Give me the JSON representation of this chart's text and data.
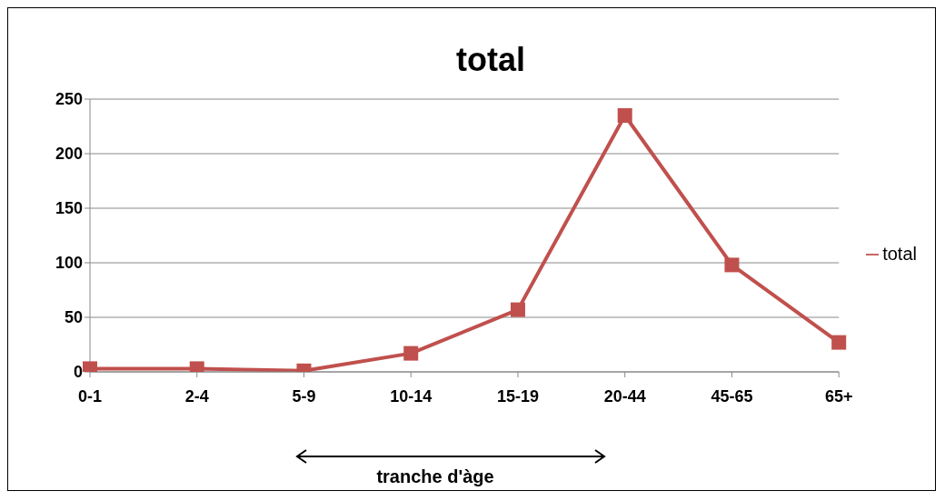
{
  "chart_data": {
    "type": "line",
    "title": "total",
    "xlabel": "tranche d'àge",
    "categories": [
      "0-1",
      "2-4",
      "5-9",
      "10-14",
      "15-19",
      "20-44",
      "45-65",
      "65+"
    ],
    "series": [
      {
        "name": "total",
        "color": "#c0504d",
        "values": [
          3,
          3,
          1,
          17,
          57,
          235,
          98,
          27
        ]
      }
    ],
    "ylim": [
      0,
      250
    ],
    "yticks": [
      0,
      50,
      100,
      150,
      200,
      250
    ],
    "grid": "y",
    "legend": "right",
    "marker": "square",
    "line_style": "solid"
  }
}
